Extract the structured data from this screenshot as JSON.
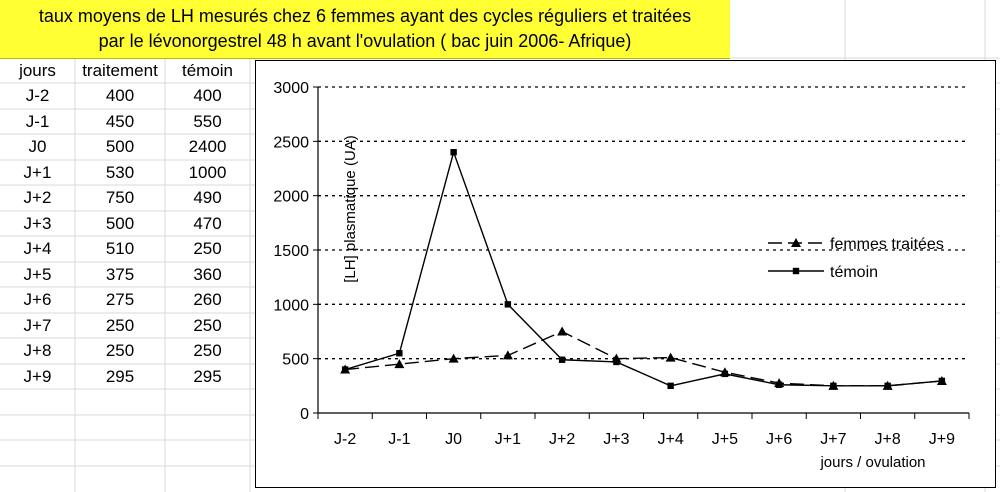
{
  "sheet": {
    "title_line1": "taux moyens de LH mesurés chez 6 femmes ayant des cycles réguliers et traitées",
    "title_line2": "par le lévonorgestrel 48 h avant l'ovulation ( bac juin 2006- Afrique)",
    "table": {
      "headers": [
        "jours",
        "traitement",
        "témoin"
      ],
      "rows": [
        [
          "J-2",
          "400",
          "400"
        ],
        [
          "J-1",
          "450",
          "550"
        ],
        [
          "J0",
          "500",
          "2400"
        ],
        [
          "J+1",
          "530",
          "1000"
        ],
        [
          "J+2",
          "750",
          "490"
        ],
        [
          "J+3",
          "500",
          "470"
        ],
        [
          "J+4",
          "510",
          "250"
        ],
        [
          "J+5",
          "375",
          "360"
        ],
        [
          "J+6",
          "275",
          "260"
        ],
        [
          "J+7",
          "250",
          "250"
        ],
        [
          "J+8",
          "250",
          "250"
        ],
        [
          "J+9",
          "295",
          "295"
        ]
      ]
    }
  },
  "colors": {
    "title_bg": "#ffff33",
    "line": "#000000",
    "grid": "#000000",
    "sheet_grid": "#d8d8d8"
  },
  "chart_data": {
    "type": "line",
    "categories": [
      "J-2",
      "J-1",
      "J0",
      "J+1",
      "J+2",
      "J+3",
      "J+4",
      "J+5",
      "J+6",
      "J+7",
      "J+8",
      "J+9"
    ],
    "series": [
      {
        "name": "femmes traitées",
        "values": [
          400,
          450,
          500,
          530,
          750,
          500,
          510,
          375,
          275,
          250,
          250,
          295
        ],
        "marker": "triangle",
        "dash": "dashed"
      },
      {
        "name": "témoin",
        "values": [
          400,
          550,
          2400,
          1000,
          490,
          470,
          250,
          360,
          260,
          250,
          250,
          295
        ],
        "marker": "square",
        "dash": "solid"
      }
    ],
    "ylabel": "[LH] plasmatique (UA)",
    "xlabel": "jours / ovulation",
    "ylim": [
      0,
      3000
    ],
    "yticks": [
      0,
      500,
      1000,
      1500,
      2000,
      2500,
      3000
    ],
    "grid": "horizontal dashed",
    "legend": "right"
  }
}
